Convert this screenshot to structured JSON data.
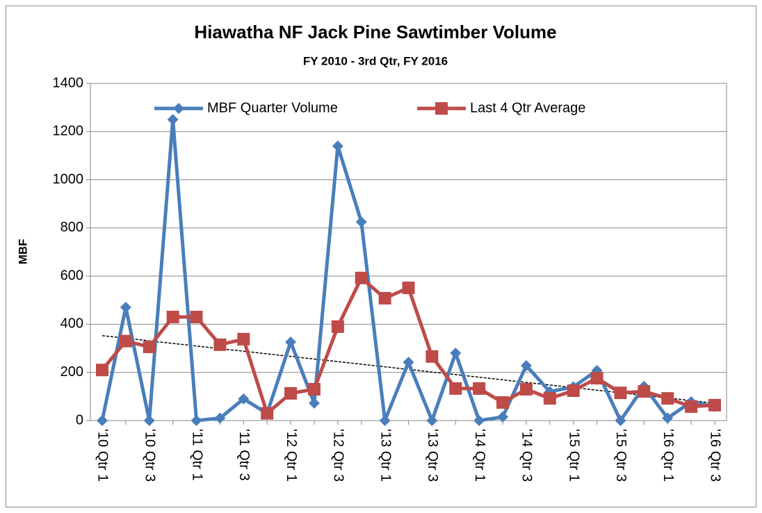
{
  "chart_data": {
    "type": "line",
    "title": "Hiawatha NF Jack Pine Sawtimber Volume",
    "subtitle": "FY 2010 - 3rd Qtr, FY 2016",
    "y_label": "MBF",
    "categories": [
      "'10 Qtr 1",
      null,
      "'10 Qtr 3",
      null,
      "'11 Qtr 1",
      null,
      "'11 Qtr 3",
      null,
      "'12 Qtr 1",
      null,
      "'12 Qtr 3",
      null,
      "'13 Qtr 1",
      null,
      "'13 Qtr 3",
      null,
      "'14 Qtr 1",
      null,
      "'14 Qtr 3",
      null,
      "'15 Qtr 1",
      null,
      "'15 Qtr 3",
      null,
      "'16 Qtr 1",
      null,
      "'16 Qtr 3"
    ],
    "series": [
      {
        "name": "MBF Quarter Volume",
        "color": "#4a7ebb",
        "marker": "diamond",
        "values": [
          0,
          470,
          0,
          1250,
          0,
          10,
          90,
          30,
          326,
          72,
          1140,
          825,
          0,
          242,
          0,
          280,
          0,
          15,
          228,
          120,
          140,
          208,
          0,
          142,
          10,
          78,
          58
        ]
      },
      {
        "name": "Last 4 Qtr Average",
        "color": "#be4b48",
        "marker": "square",
        "values": [
          210,
          330,
          306,
          430,
          430,
          315,
          338,
          30,
          113,
          130,
          390,
          592,
          508,
          551,
          266,
          133,
          133,
          75,
          130,
          92,
          124,
          176,
          115,
          121,
          92,
          58,
          64
        ]
      }
    ],
    "trendline": {
      "series": 0,
      "color": "#000000",
      "dashed": true
    },
    "ylim": [
      0,
      1400
    ],
    "yticks": [
      0,
      200,
      400,
      600,
      800,
      1000,
      1200,
      1400
    ],
    "grid": true,
    "legend": "top"
  }
}
